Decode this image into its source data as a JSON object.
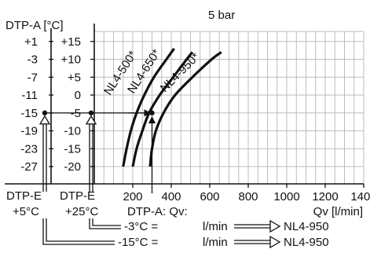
{
  "chart_data": {
    "type": "line",
    "title": "5 bar",
    "ylabel": "DTP-A [°C]",
    "xlabel": "Qv [l/min]",
    "grid": true,
    "xlim": [
      0,
      1400
    ],
    "x_ticks": [
      "200",
      "400",
      "600",
      "800",
      "1000",
      "1200",
      "1400"
    ],
    "y_ticks_left": [
      "+1",
      "-3",
      "-7",
      "-11",
      "-15",
      "-19",
      "-23",
      "-27"
    ],
    "y_ticks_right": [
      "+15",
      "+10",
      "+5",
      "0",
      "-5",
      "-10",
      "-15",
      "-20"
    ],
    "series": [
      {
        "name": "NL4-500*",
        "points": [
          [
            150,
            -20
          ],
          [
            168,
            -15
          ],
          [
            190,
            -10
          ],
          [
            220,
            -5
          ],
          [
            260,
            0
          ],
          [
            310,
            5
          ],
          [
            375,
            10
          ],
          [
            415,
            13
          ]
        ]
      },
      {
        "name": "NL4-650*",
        "points": [
          [
            200,
            -20
          ],
          [
            220,
            -15
          ],
          [
            250,
            -10
          ],
          [
            285,
            -5
          ],
          [
            340,
            0
          ],
          [
            410,
            5
          ],
          [
            480,
            10
          ],
          [
            510,
            12
          ]
        ]
      },
      {
        "name": "NL4-950*",
        "points": [
          [
            290,
            -20
          ],
          [
            300,
            -15
          ],
          [
            320,
            -10
          ],
          [
            360,
            -5
          ],
          [
            420,
            0
          ],
          [
            510,
            5
          ],
          [
            610,
            10
          ],
          [
            660,
            12
          ]
        ]
      }
    ],
    "annotations": {
      "dtpe_left": "DTP-E",
      "dtpe_left_value": "+5°C",
      "dtpe_right": "DTP-E",
      "dtpe_right_value": "+25°C",
      "dtpa_qv": "DTP-A: Qv:",
      "row1_temp": "-3°C =",
      "row1_unit": "l/min",
      "row1_result": "NL4-950",
      "row2_temp": "-15°C =",
      "row2_unit": "l/min",
      "row2_result": "NL4-950"
    }
  }
}
